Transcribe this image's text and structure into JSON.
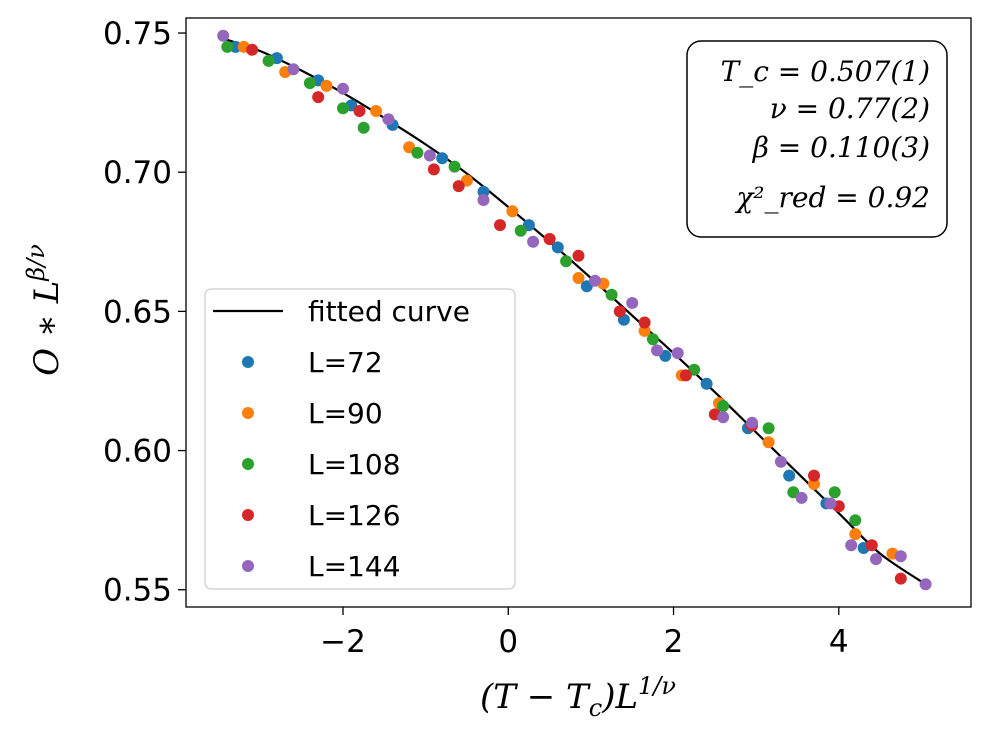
{
  "chart_data": {
    "type": "scatter",
    "title": "",
    "xlabel": "(T − T_c)L^{1/ν}",
    "ylabel": "O * L^{β/ν}",
    "xlim": [
      -3.9,
      5.6
    ],
    "ylim": [
      0.5438,
      0.7554
    ],
    "xticks": [
      -2,
      0,
      2,
      4
    ],
    "xtick_labels": [
      "−2",
      "0",
      "2",
      "4"
    ],
    "yticks": [
      0.55,
      0.6,
      0.65,
      0.7,
      0.75
    ],
    "ytick_labels": [
      "0.55",
      "0.60",
      "0.65",
      "0.70",
      "0.75"
    ],
    "legend_position": "lower-left",
    "fit": {
      "name": "fitted curve",
      "color": "#000000",
      "x": [
        -3.45,
        -3.0,
        -2.5,
        -2.0,
        -1.5,
        -1.0,
        -0.5,
        0.0,
        0.5,
        1.0,
        1.5,
        2.0,
        2.5,
        3.0,
        3.5,
        4.0,
        4.5,
        5.05
      ],
      "y": [
        0.748,
        0.7435,
        0.7365,
        0.7285,
        0.7195,
        0.71,
        0.6995,
        0.6875,
        0.675,
        0.662,
        0.6485,
        0.635,
        0.621,
        0.6065,
        0.592,
        0.5775,
        0.563,
        0.552
      ]
    },
    "series": [
      {
        "name": "L=72",
        "color": "#1f77b4",
        "x": [
          -3.3,
          -2.8,
          -2.3,
          -1.9,
          -1.4,
          -0.8,
          -0.3,
          0.25,
          0.6,
          0.95,
          1.4,
          1.9,
          2.4,
          2.9,
          3.4,
          3.85,
          4.3
        ],
        "y": [
          0.745,
          0.741,
          0.733,
          0.724,
          0.717,
          0.705,
          0.693,
          0.681,
          0.673,
          0.659,
          0.647,
          0.634,
          0.624,
          0.608,
          0.591,
          0.581,
          0.565
        ]
      },
      {
        "name": "L=90",
        "color": "#ff7f0e",
        "x": [
          -3.2,
          -2.7,
          -2.2,
          -1.6,
          -1.2,
          -0.5,
          0.05,
          0.5,
          0.85,
          1.15,
          1.65,
          2.1,
          2.55,
          3.15,
          3.7,
          4.2,
          4.65
        ],
        "y": [
          0.745,
          0.736,
          0.731,
          0.722,
          0.709,
          0.697,
          0.686,
          0.676,
          0.662,
          0.66,
          0.643,
          0.627,
          0.617,
          0.603,
          0.588,
          0.57,
          0.563
        ]
      },
      {
        "name": "L=108",
        "color": "#2ca02c",
        "x": [
          -3.4,
          -2.9,
          -2.4,
          -2.0,
          -1.75,
          -1.1,
          -0.65,
          0.15,
          0.7,
          1.25,
          1.75,
          2.25,
          2.6,
          3.15,
          3.45,
          3.95,
          4.2
        ],
        "y": [
          0.745,
          0.74,
          0.732,
          0.723,
          0.716,
          0.707,
          0.702,
          0.679,
          0.668,
          0.656,
          0.64,
          0.629,
          0.616,
          0.608,
          0.585,
          0.585,
          0.575
        ]
      },
      {
        "name": "L=126",
        "color": "#d62728",
        "x": [
          -3.1,
          -2.3,
          -1.8,
          -0.9,
          -0.6,
          -0.1,
          0.5,
          0.85,
          1.35,
          1.65,
          2.15,
          2.5,
          2.95,
          3.7,
          4.0,
          4.4,
          4.75
        ],
        "y": [
          0.744,
          0.727,
          0.722,
          0.701,
          0.695,
          0.681,
          0.676,
          0.67,
          0.65,
          0.646,
          0.627,
          0.613,
          0.609,
          0.591,
          0.58,
          0.566,
          0.554
        ]
      },
      {
        "name": "L=144",
        "color": "#9467bd",
        "x": [
          -3.45,
          -2.6,
          -2.0,
          -1.45,
          -0.95,
          -0.3,
          0.3,
          1.05,
          1.5,
          1.8,
          2.05,
          2.6,
          2.95,
          3.3,
          3.55,
          3.9,
          4.15,
          4.45,
          4.75,
          5.05
        ],
        "y": [
          0.749,
          0.737,
          0.73,
          0.719,
          0.706,
          0.69,
          0.675,
          0.661,
          0.653,
          0.636,
          0.635,
          0.612,
          0.61,
          0.596,
          0.583,
          0.581,
          0.566,
          0.561,
          0.562,
          0.552
        ]
      }
    ],
    "annotation": {
      "lines": [
        "T_c = 0.507(1)",
        "ν = 0.77(2)",
        "β = 0.110(3)",
        "χ²_red = 0.92"
      ],
      "position": "top-right"
    }
  }
}
